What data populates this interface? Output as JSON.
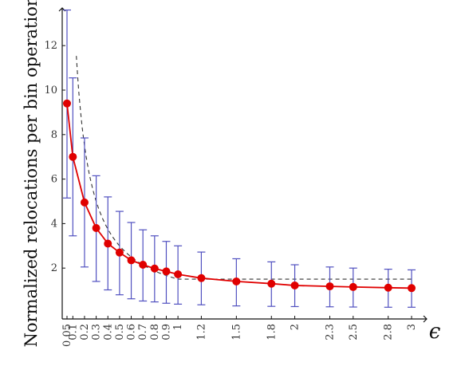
{
  "chart_data": {
    "type": "line",
    "title": "",
    "xlabel": "ϵ",
    "ylabel": "Normalized relocations per bin operation",
    "xlim": [
      0,
      3.1
    ],
    "ylim": [
      0,
      14
    ],
    "x_ticks": [
      0.05,
      0.1,
      0.2,
      0.3,
      0.4,
      0.5,
      0.6,
      0.7,
      0.8,
      0.9,
      1,
      1.2,
      1.5,
      1.8,
      2,
      2.3,
      2.5,
      2.8,
      3
    ],
    "x_tick_labels": [
      "0.05",
      "0.1",
      "0.2",
      "0.3",
      "0.4",
      "0.5",
      "0.6",
      "0.7",
      "0.8",
      "0.9",
      "1",
      "1.2",
      "1.5",
      "1.8",
      "2",
      "2.3",
      "2.5",
      "2.8",
      "3"
    ],
    "y_ticks": [
      2,
      4,
      6,
      8,
      10,
      12
    ],
    "y_tick_labels": [
      "2",
      "4",
      "6",
      "8",
      "10",
      "12"
    ],
    "grid": false,
    "legend": "none",
    "series": [
      {
        "color": "#e00000",
        "marker": "circle",
        "x": [
          0.05,
          0.1,
          0.2,
          0.3,
          0.4,
          0.5,
          0.6,
          0.7,
          0.8,
          0.9,
          1,
          1.2,
          1.5,
          1.8,
          2,
          2.3,
          2.5,
          2.8,
          3
        ],
        "y": [
          9.4,
          7.0,
          4.95,
          3.8,
          3.1,
          2.7,
          2.35,
          2.15,
          1.98,
          1.85,
          1.72,
          1.55,
          1.4,
          1.3,
          1.22,
          1.18,
          1.15,
          1.12,
          1.1
        ],
        "y_upper": [
          13.6,
          10.55,
          7.85,
          6.15,
          5.2,
          4.55,
          4.05,
          3.72,
          3.45,
          3.2,
          3.0,
          2.72,
          2.42,
          2.28,
          2.15,
          2.05,
          2.0,
          1.95,
          1.92
        ],
        "y_lower": [
          5.15,
          3.45,
          2.05,
          1.4,
          1.02,
          0.8,
          0.62,
          0.52,
          0.48,
          0.42,
          0.38,
          0.35,
          0.3,
          0.28,
          0.27,
          0.26,
          0.25,
          0.24,
          0.24
        ],
        "error_bar_color": "#5050c0"
      },
      {
        "style": "dashed",
        "color": "#333333",
        "function": "1.5/eps for eps < 1, 1.5 for eps >= 1",
        "x": [
          0.1,
          0.15,
          0.2,
          0.3,
          0.4,
          0.5,
          0.6,
          0.7,
          0.8,
          0.9,
          1,
          1.5,
          2,
          2.5,
          3
        ],
        "y": [
          15,
          10,
          7.5,
          5,
          3.75,
          3,
          2.5,
          2.14,
          1.88,
          1.67,
          1.5,
          1.5,
          1.5,
          1.5,
          1.5
        ]
      }
    ]
  }
}
